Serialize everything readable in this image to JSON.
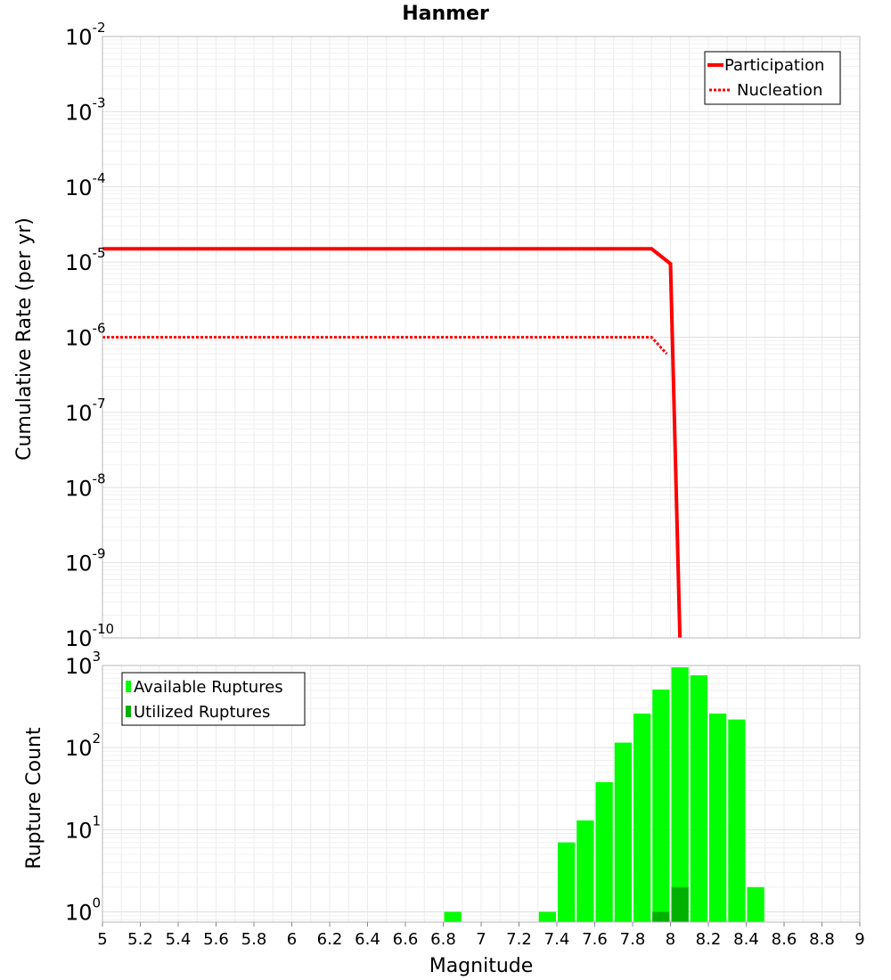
{
  "chart_data": [
    {
      "type": "line",
      "title": "Hanmer",
      "xlabel": "",
      "ylabel": "Cumulative Rate (per yr)",
      "yscale": "log",
      "ylim": [
        1e-10,
        0.01
      ],
      "xlim": [
        5,
        9
      ],
      "ytick_labels": [
        {
          "base": "10",
          "exp": "-2"
        },
        {
          "base": "10",
          "exp": "-3"
        },
        {
          "base": "10",
          "exp": "-4"
        },
        {
          "base": "10",
          "exp": "-5"
        },
        {
          "base": "10",
          "exp": "-6"
        },
        {
          "base": "10",
          "exp": "-7"
        },
        {
          "base": "10",
          "exp": "-8"
        },
        {
          "base": "10",
          "exp": "-9"
        },
        {
          "base": "10",
          "exp": "-10"
        }
      ],
      "legend_position": "top-right",
      "series": [
        {
          "name": "Participation",
          "style": "solid",
          "color": "#ff0000",
          "x": [
            5.0,
            7.9,
            8.0,
            8.05
          ],
          "y": [
            1.5e-05,
            1.5e-05,
            9.5e-06,
            8e-11
          ]
        },
        {
          "name": "Nucleation",
          "style": "dotted",
          "color": "#ff0000",
          "x": [
            5.0,
            7.9,
            7.98
          ],
          "y": [
            1e-06,
            1e-06,
            6e-07
          ]
        }
      ]
    },
    {
      "type": "bar",
      "title": "",
      "xlabel": "Magnitude",
      "ylabel": "Rupture Count",
      "yscale": "log",
      "ylim": [
        0.75,
        1000
      ],
      "xlim": [
        5,
        9
      ],
      "ytick_labels": [
        {
          "base": "10",
          "exp": "3",
          "value": 1000
        },
        {
          "base": "10",
          "exp": "2",
          "value": 100
        },
        {
          "base": "10",
          "exp": "1",
          "value": 10
        },
        {
          "base": "10",
          "exp": "0",
          "value": 1
        }
      ],
      "xtick_labels": [
        "5",
        "5.2",
        "5.4",
        "5.6",
        "5.8",
        "6",
        "6.2",
        "6.4",
        "6.6",
        "6.8",
        "7",
        "7.2",
        "7.4",
        "7.6",
        "7.8",
        "8",
        "8.2",
        "8.4",
        "8.6",
        "8.8",
        "9"
      ],
      "xticks": [
        5,
        5.2,
        5.4,
        5.6,
        5.8,
        6,
        6.2,
        6.4,
        6.6,
        6.8,
        7,
        7.2,
        7.4,
        7.6,
        7.8,
        8,
        8.2,
        8.4,
        8.6,
        8.8,
        9
      ],
      "legend_position": "top-left",
      "bin_width": 0.1,
      "series": [
        {
          "name": "Available Ruptures",
          "color": "#00ff00",
          "x": [
            6.85,
            7.35,
            7.45,
            7.55,
            7.65,
            7.75,
            7.85,
            7.95,
            8.05,
            8.15,
            8.25,
            8.35,
            8.45
          ],
          "values": [
            1,
            1,
            7,
            13,
            38,
            115,
            260,
            510,
            950,
            760,
            260,
            220,
            2
          ]
        },
        {
          "name": "Utilized Ruptures",
          "color": "#00b000",
          "x": [
            7.95,
            8.05
          ],
          "values": [
            1,
            2
          ]
        }
      ]
    }
  ]
}
